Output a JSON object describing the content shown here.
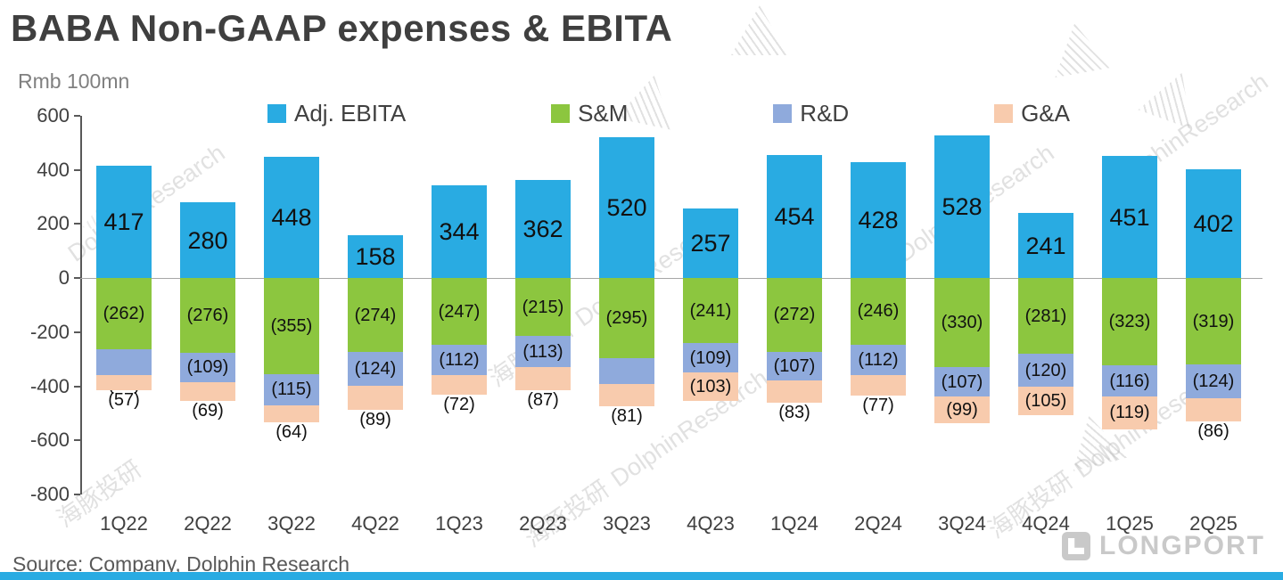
{
  "title": "BABA Non-GAAP expenses & EBITA",
  "subtitle": "Rmb 100mn",
  "source": "Source: Company, Dolphin Research",
  "watermark": {
    "en": "DolphinResearch",
    "cn": "海豚投研"
  },
  "logo_text": "LONGPORT",
  "colors": {
    "adj_ebita": "#29ABE2",
    "sm": "#8CC63F",
    "rd": "#8FAADC",
    "ga": "#F8CBAD",
    "bottom_strip": "#29ABE2"
  },
  "chart_data": {
    "type": "bar",
    "stacked": true,
    "grid": false,
    "legend_position": "top",
    "title": "BABA Non-GAAP expenses & EBITA",
    "xlabel": "",
    "ylabel": "Rmb 100mn",
    "ylim": [
      -800,
      600
    ],
    "ytick_step": 200,
    "categories": [
      "1Q22",
      "2Q22",
      "3Q22",
      "4Q22",
      "1Q23",
      "2Q23",
      "3Q23",
      "4Q23",
      "1Q24",
      "2Q24",
      "3Q24",
      "4Q24",
      "1Q25",
      "2Q25"
    ],
    "series": [
      {
        "name": "Adj. EBITA",
        "color_key": "adj_ebita",
        "values": [
          417,
          280,
          448,
          158,
          344,
          362,
          520,
          257,
          454,
          428,
          528,
          241,
          451,
          402
        ]
      },
      {
        "name": "S&M",
        "color_key": "sm",
        "values": [
          -262,
          -276,
          -355,
          -274,
          -247,
          -215,
          -295,
          -241,
          -272,
          -246,
          -330,
          -281,
          -323,
          -319
        ]
      },
      {
        "name": "R&D",
        "color_key": "rd",
        "values": [
          -97,
          -109,
          -115,
          -124,
          -112,
          -113,
          -98,
          -109,
          -107,
          -112,
          -107,
          -120,
          -116,
          -124
        ]
      },
      {
        "name": "G&A",
        "color_key": "ga",
        "values": [
          -57,
          -69,
          -64,
          -89,
          -72,
          -87,
          -81,
          -103,
          -83,
          -77,
          -99,
          -105,
          -119,
          -86
        ]
      }
    ]
  }
}
